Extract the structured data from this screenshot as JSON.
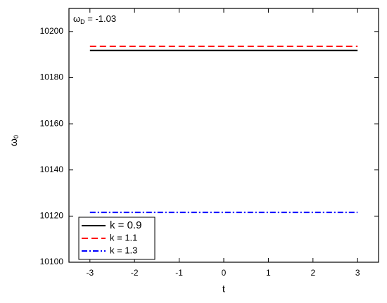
{
  "chart_data": {
    "type": "line",
    "annotation": {
      "symbol": "ω",
      "sub": "D",
      "text": " = -1.03"
    },
    "xlabel": "t",
    "ylabel": {
      "symbol": "ω",
      "sub": "0"
    },
    "x": [
      -3,
      3
    ],
    "series": [
      {
        "name": "k = 0.9",
        "color": "#000000",
        "linestyle": "solid",
        "values": [
          10191.8,
          10191.8
        ]
      },
      {
        "name": "k = 1.1",
        "color": "#ff0000",
        "linestyle": "dashed",
        "values": [
          10193.6,
          10193.6
        ]
      },
      {
        "name": "k = 1.3",
        "color": "#0000ff",
        "linestyle": "dashdot",
        "values": [
          10121.6,
          10121.6
        ]
      }
    ],
    "xlim": [
      -3.47,
      3.47
    ],
    "ylim": [
      10100,
      10210
    ],
    "xticks": [
      -3,
      -2,
      -1,
      0,
      1,
      2,
      3
    ],
    "yticks": [
      10100,
      10120,
      10140,
      10160,
      10180,
      10200
    ],
    "legend": "lower left"
  }
}
